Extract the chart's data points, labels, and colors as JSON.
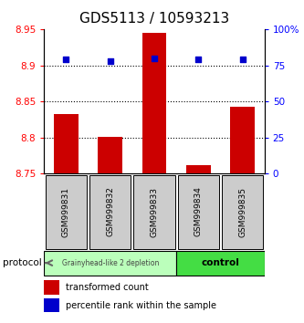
{
  "title": "GDS5113 / 10593213",
  "samples": [
    "GSM999831",
    "GSM999832",
    "GSM999833",
    "GSM999834",
    "GSM999835"
  ],
  "bar_values": [
    8.832,
    8.801,
    8.945,
    8.762,
    8.843
  ],
  "bar_base": 8.75,
  "percentile_values": [
    79,
    78,
    80,
    79,
    79
  ],
  "ylim": [
    8.75,
    8.95
  ],
  "y2lim": [
    0,
    100
  ],
  "yticks": [
    8.75,
    8.8,
    8.85,
    8.9,
    8.95
  ],
  "ytick_labels": [
    "8.75",
    "8.8",
    "8.85",
    "8.9",
    "8.95"
  ],
  "y2ticks": [
    0,
    25,
    50,
    75,
    100
  ],
  "y2tick_labels": [
    "0",
    "25",
    "50",
    "75",
    "100%"
  ],
  "bar_color": "#cc0000",
  "percentile_color": "#0000cc",
  "background_color": "#ffffff",
  "group1_label": "Grainyhead-like 2 depletion",
  "group2_label": "control",
  "group1_color": "#bbffbb",
  "group2_color": "#44dd44",
  "group1_samples": [
    0,
    1,
    2
  ],
  "group2_samples": [
    3,
    4
  ],
  "protocol_label": "protocol",
  "legend_bar_label": "transformed count",
  "legend_pct_label": "percentile rank within the sample",
  "title_fontsize": 11,
  "tick_fontsize": 7.5,
  "bar_width": 0.55,
  "sample_cell_color": "#cccccc",
  "grid_yticks": [
    8.8,
    8.85,
    8.9
  ]
}
